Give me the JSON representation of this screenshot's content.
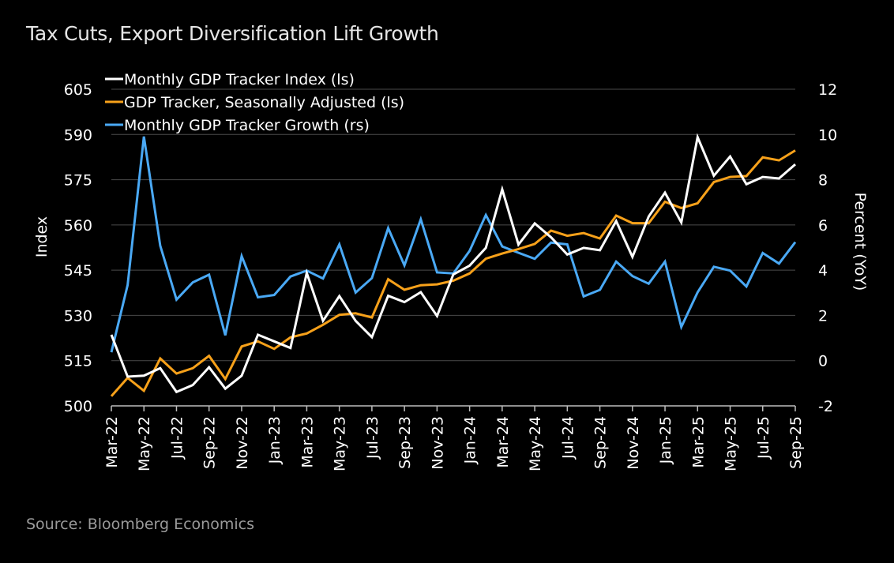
{
  "title": "Tax Cuts, Export Diversification Lift Growth",
  "source": "Source: Bloomberg Economics",
  "chart_data": {
    "type": "line",
    "title": "Tax Cuts, Export Diversification Lift Growth",
    "xlabel": "",
    "ylabel_left": "Index",
    "ylabel_right": "Percent (YoY)",
    "ylim_left": [
      500,
      605
    ],
    "yticks_left": [
      500,
      515,
      530,
      545,
      560,
      575,
      590,
      605
    ],
    "ylim_right": [
      -2,
      12
    ],
    "yticks_right": [
      -2,
      0,
      2,
      4,
      6,
      8,
      10,
      12
    ],
    "grid": true,
    "legend_position": "top-left",
    "x": [
      "Mar-22",
      "Apr-22",
      "May-22",
      "Jun-22",
      "Jul-22",
      "Aug-22",
      "Sep-22",
      "Oct-22",
      "Nov-22",
      "Dec-22",
      "Jan-23",
      "Feb-23",
      "Mar-23",
      "Apr-23",
      "May-23",
      "Jun-23",
      "Jul-23",
      "Aug-23",
      "Sep-23",
      "Oct-23",
      "Nov-23",
      "Dec-23",
      "Jan-24",
      "Feb-24",
      "Mar-24",
      "Apr-24",
      "May-24",
      "Jun-24",
      "Jul-24",
      "Aug-24",
      "Sep-24",
      "Oct-24",
      "Nov-24",
      "Dec-24",
      "Jan-25",
      "Feb-25",
      "Mar-25",
      "Apr-25",
      "May-25",
      "Jun-25",
      "Jul-25",
      "Aug-25",
      "Sep-25"
    ],
    "xtick_labels": [
      "Mar-22",
      "May-22",
      "Jul-22",
      "Sep-22",
      "Nov-22",
      "Jan-23",
      "Mar-23",
      "May-23",
      "Jul-23",
      "Sep-23",
      "Nov-23",
      "Jan-24",
      "Mar-24",
      "May-24",
      "Jul-24",
      "Sep-24",
      "Nov-24",
      "Jan-25",
      "Mar-25",
      "May-25",
      "Jul-25",
      "Sep-25"
    ],
    "series": [
      {
        "name": "Monthly GDP Tracker Index (ls)",
        "axis": "left",
        "color": "#ffffff",
        "values": [
          523.6,
          509.7,
          510.0,
          512.5,
          504.6,
          506.9,
          512.8,
          505.7,
          510.0,
          523.6,
          521.4,
          519.2,
          544.1,
          528.2,
          536.4,
          528.2,
          522.8,
          536.5,
          534.4,
          537.7,
          529.8,
          543.6,
          546.5,
          552.4,
          571.8,
          553.5,
          560.5,
          555.9,
          550.2,
          552.4,
          551.6,
          561.3,
          549.4,
          562.8,
          570.7,
          560.8,
          589.1,
          576.3,
          582.7,
          573.5,
          575.9,
          575.4,
          580.1
        ]
      },
      {
        "name": "GDP Tracker, Seasonally Adjusted (ls)",
        "axis": "left",
        "color": "#f7a11a",
        "values": [
          503.2,
          509.3,
          505.0,
          515.7,
          510.7,
          512.5,
          516.6,
          508.9,
          519.7,
          521.4,
          518.9,
          522.7,
          524.0,
          526.9,
          530.2,
          530.7,
          529.3,
          542.0,
          538.5,
          540.0,
          540.3,
          541.5,
          543.9,
          548.8,
          550.5,
          552.0,
          553.7,
          558.1,
          556.4,
          557.3,
          555.5,
          563.1,
          560.6,
          560.6,
          567.7,
          565.6,
          567.2,
          574.2,
          575.9,
          576.2,
          582.4,
          581.4,
          584.7
        ]
      },
      {
        "name": "Monthly GDP Tracker Growth (rs)",
        "axis": "right",
        "color": "#4aa9f5",
        "values": [
          0.37,
          3.34,
          9.91,
          5.08,
          2.7,
          3.46,
          3.8,
          1.12,
          4.62,
          2.8,
          2.9,
          3.72,
          3.98,
          3.63,
          5.14,
          3.01,
          3.65,
          5.86,
          4.21,
          6.25,
          3.9,
          3.86,
          4.85,
          6.44,
          5.05,
          4.77,
          4.5,
          5.22,
          5.14,
          2.84,
          3.13,
          4.38,
          3.74,
          3.4,
          4.38,
          1.49,
          3.02,
          4.15,
          3.98,
          3.28,
          4.76,
          4.29,
          5.24
        ]
      }
    ]
  }
}
